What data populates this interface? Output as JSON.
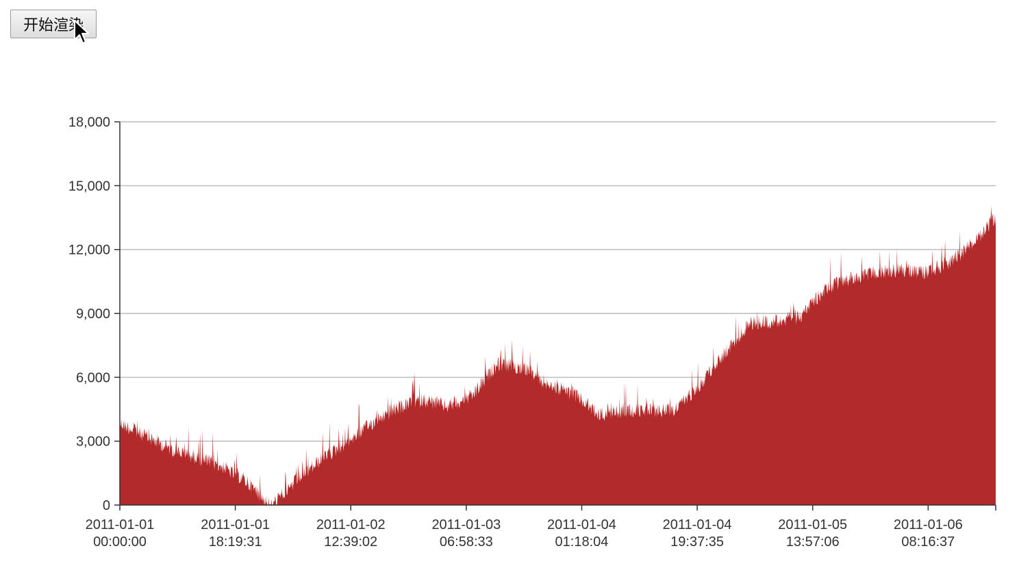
{
  "toolbar": {
    "render_label": "开始渲染"
  },
  "chart_data": {
    "type": "area",
    "title": "",
    "xlabel": "",
    "ylabel": "",
    "ylim": [
      0,
      18000
    ],
    "xlim": [
      "2011-01-01 00:00:00",
      "2011-01-06 19:00:00"
    ],
    "grid": true,
    "color": "#b22a2a",
    "y_ticks": [
      "0",
      "3,000",
      "6,000",
      "9,000",
      "12,000",
      "15,000",
      "18,000"
    ],
    "x_ticks": [
      {
        "line1": "2011-01-01",
        "line2": "00:00:00"
      },
      {
        "line1": "2011-01-01",
        "line2": "18:19:31"
      },
      {
        "line1": "2011-01-02",
        "line2": "12:39:02"
      },
      {
        "line1": "2011-01-03",
        "line2": "06:58:33"
      },
      {
        "line1": "2011-01-04",
        "line2": "01:18:04"
      },
      {
        "line1": "2011-01-04",
        "line2": "19:37:35"
      },
      {
        "line1": "2011-01-05",
        "line2": "13:57:06"
      },
      {
        "line1": "2011-01-06",
        "line2": "08:16:37"
      }
    ],
    "x": [
      "2011-01-01 00:00:00",
      "2011-01-01 04:00:00",
      "2011-01-01 08:00:00",
      "2011-01-01 12:00:00",
      "2011-01-01 16:00:00",
      "2011-01-01 20:00:00",
      "2011-01-02 00:00:00",
      "2011-01-02 04:00:00",
      "2011-01-02 08:00:00",
      "2011-01-02 12:00:00",
      "2011-01-02 16:00:00",
      "2011-01-02 20:00:00",
      "2011-01-03 00:00:00",
      "2011-01-03 04:00:00",
      "2011-01-03 08:00:00",
      "2011-01-03 12:00:00",
      "2011-01-03 16:00:00",
      "2011-01-03 20:00:00",
      "2011-01-04 00:00:00",
      "2011-01-04 04:00:00",
      "2011-01-04 08:00:00",
      "2011-01-04 12:00:00",
      "2011-01-04 16:00:00",
      "2011-01-04 20:00:00",
      "2011-01-05 00:00:00",
      "2011-01-05 04:00:00",
      "2011-01-05 08:00:00",
      "2011-01-05 12:00:00",
      "2011-01-05 16:00:00",
      "2011-01-05 20:00:00",
      "2011-01-06 00:00:00",
      "2011-01-06 04:00:00",
      "2011-01-06 08:00:00",
      "2011-01-06 12:00:00",
      "2011-01-06 16:00:00",
      "2011-01-06 19:00:00"
    ],
    "values": [
      4200,
      3600,
      3000,
      2600,
      2200,
      1500,
      300,
      1500,
      2500,
      3300,
      4200,
      4900,
      5300,
      5000,
      5500,
      7000,
      6800,
      6000,
      5600,
      4600,
      4800,
      4800,
      4800,
      6000,
      7500,
      8900,
      9000,
      9200,
      10500,
      11000,
      11300,
      11400,
      11300,
      11800,
      12800,
      13900
    ]
  }
}
